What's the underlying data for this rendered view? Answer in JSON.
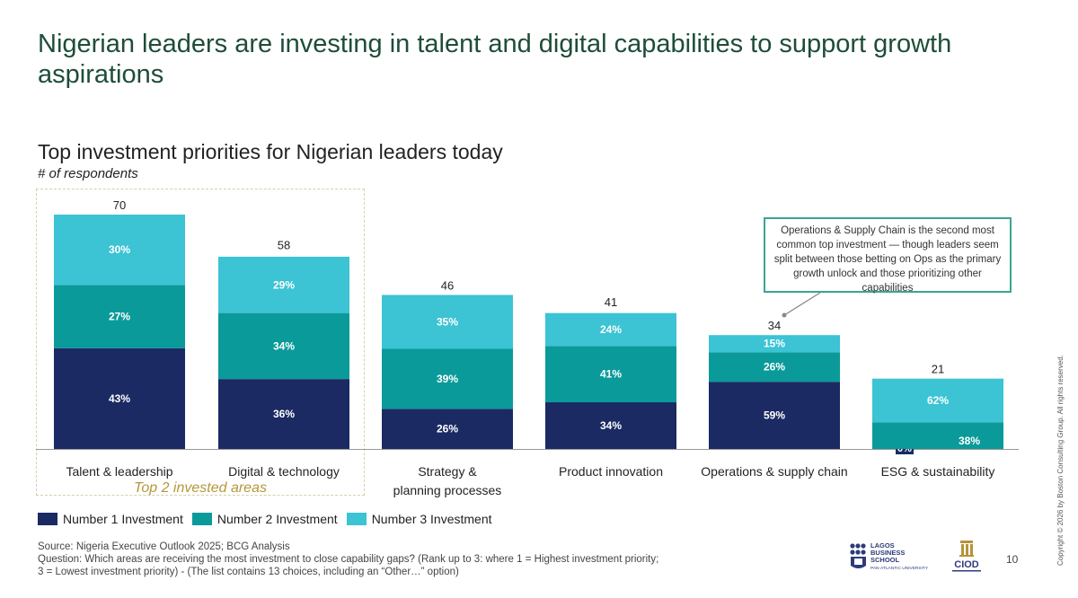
{
  "slide": {
    "title": "Nigerian leaders are investing in talent and digital capabilities to support growth aspirations",
    "page_number": "10",
    "copyright": "Copyright © 2026 by Boston Consulting Group. All rights reserved."
  },
  "highlight": {
    "label": "Top 2 invested areas"
  },
  "callout": {
    "text": "Operations & Supply Chain is the second most common top investment — though leaders seem split between those betting on Ops as the primary growth unlock and those prioritizing other capabilities"
  },
  "legend": [
    {
      "label": "Number 1 Investment",
      "color": "#1b2a63"
    },
    {
      "label": "Number 2 Investment",
      "color": "#0a9a9a"
    },
    {
      "label": "Number 3 Investment",
      "color": "#3cc3d4"
    }
  ],
  "source": {
    "line1": "Source: Nigeria Executive Outlook 2025; BCG Analysis",
    "line2": "Question: Which areas are receiving the most investment to close capability gaps? (Rank up to 3: where 1 = Highest investment priority;",
    "line3": "3 = Lowest investment priority) - (The list contains 13 choices, including an “Other…” option)"
  },
  "logos": {
    "lbs": [
      "LAGOS",
      "BUSINESS",
      "SCHOOL",
      "PAN-ATLANTIC UNIVERSITY"
    ],
    "ciod": "CIOD"
  },
  "chart_data": {
    "type": "bar",
    "stacked": true,
    "title": "Top investment priorities for Nigerian leaders today",
    "ylabel": "# of respondents",
    "ylim": [
      0,
      70
    ],
    "categories": [
      "Talent & leadership",
      "Digital & technology",
      "Strategy & planning processes",
      "Product innovation",
      "Operations & supply chain",
      "ESG & sustainability"
    ],
    "totals": [
      70,
      58,
      46,
      41,
      34,
      21
    ],
    "series": [
      {
        "name": "Number 1 Investment",
        "percent_labels": [
          "43%",
          "36%",
          "26%",
          "34%",
          "59%",
          "0%"
        ],
        "shares": [
          0.43,
          0.36,
          0.26,
          0.34,
          0.59,
          0.0
        ]
      },
      {
        "name": "Number 2 Investment",
        "percent_labels": [
          "27%",
          "34%",
          "39%",
          "41%",
          "26%",
          "38%"
        ],
        "shares": [
          0.27,
          0.34,
          0.39,
          0.41,
          0.26,
          0.38
        ]
      },
      {
        "name": "Number 3 Investment",
        "percent_labels": [
          "30%",
          "29%",
          "35%",
          "24%",
          "15%",
          "62%"
        ],
        "shares": [
          0.3,
          0.29,
          0.35,
          0.24,
          0.15,
          0.62
        ]
      }
    ],
    "colors": [
      "#1b2a63",
      "#0a9a9a",
      "#3cc3d4"
    ],
    "grid": false,
    "legend_position": "bottom-left"
  }
}
